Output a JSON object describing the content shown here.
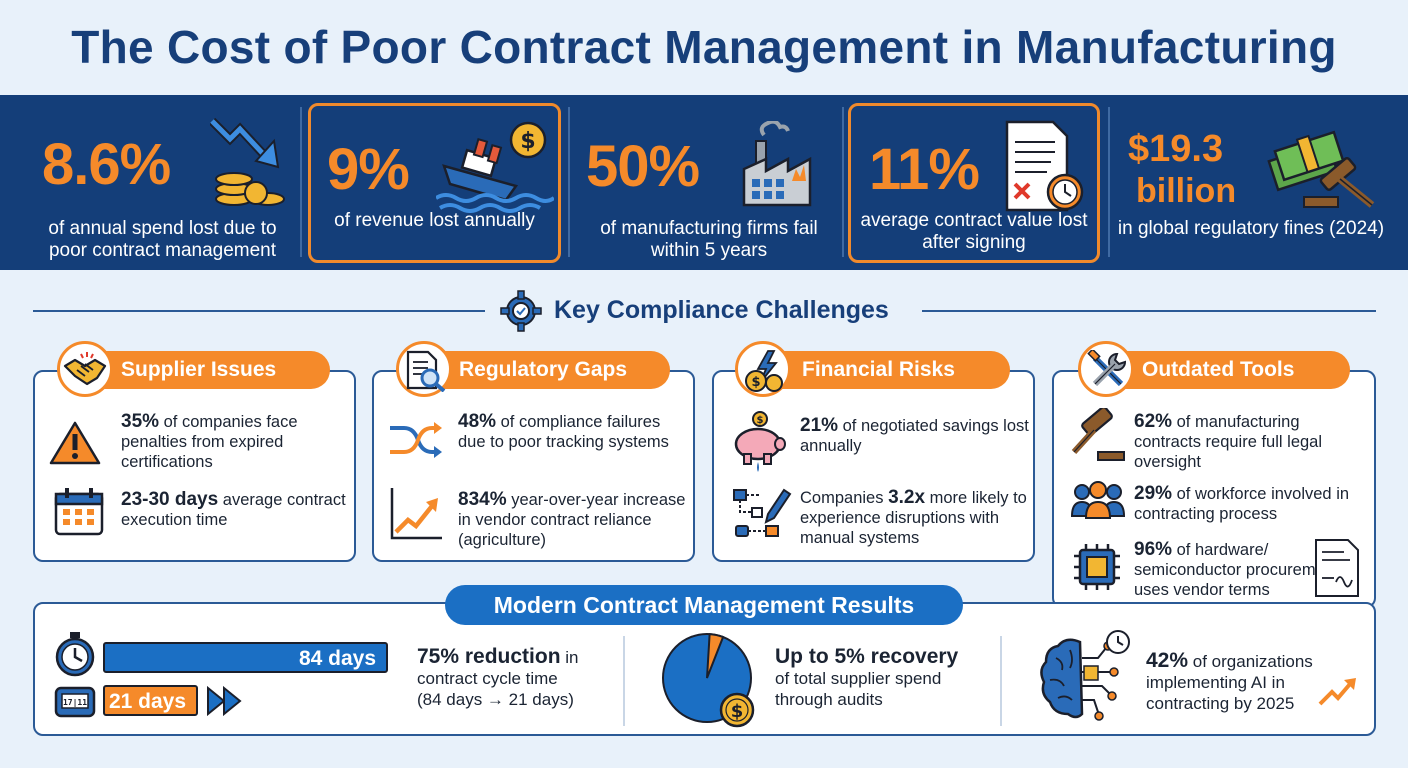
{
  "title": "The Cost of Poor Contract Management in Manufacturing",
  "stats": [
    {
      "value": "8.6%",
      "caption": "of annual spend lost due to poor contract management",
      "icon": "falling-coins-icon"
    },
    {
      "value": "9%",
      "caption": "of revenue lost annually",
      "icon": "sinking-ship-icon"
    },
    {
      "value": "50%",
      "caption": "of manufacturing firms fail within 5 years",
      "icon": "factory-icon"
    },
    {
      "value": "11%",
      "caption": "average contract value lost after signing",
      "icon": "contract-clock-icon"
    },
    {
      "value_line1": "$19.3",
      "value_line2": "billion",
      "caption": "in global regulatory fines (2024)",
      "icon": "money-gavel-icon"
    }
  ],
  "section_title": "Key Compliance Challenges",
  "challenges": [
    {
      "title": "Supplier Issues",
      "icon": "handshake-icon",
      "items": [
        {
          "bold": "35%",
          "text": "of companies face penalties from expired certifications",
          "icon": "warning-icon"
        },
        {
          "bold": "23-30 days",
          "text": "average contract execution time",
          "icon": "calendar-icon"
        }
      ]
    },
    {
      "title": "Regulatory Gaps",
      "icon": "document-search-icon",
      "items": [
        {
          "bold": "48%",
          "text": "of compliance failures due to poor tracking systems",
          "icon": "shuffle-arrows-icon"
        },
        {
          "bold": "834%",
          "text": "year-over-year increase in vendor contract reliance (agriculture)",
          "icon": "trend-up-chart-icon"
        }
      ]
    },
    {
      "title": "Financial Risks",
      "icon": "coins-lightning-icon",
      "items": [
        {
          "bold": "21%",
          "text": "of negotiated savings lost annually",
          "icon": "piggy-bank-icon"
        },
        {
          "pre": "Companies",
          "bold": "3.2x",
          "text": "more likely to experience disruptions with manual systems",
          "icon": "manual-workflow-icon"
        }
      ]
    },
    {
      "title": "Outdated Tools",
      "icon": "tools-icon",
      "items": [
        {
          "bold": "62%",
          "text": "of manufacturing contracts require full legal oversight",
          "icon": "gavel-icon"
        },
        {
          "bold": "29%",
          "text": "of workforce involved in contracting process",
          "icon": "people-icon"
        },
        {
          "bold": "96%",
          "text": "of hardware/ semiconductor procurement uses vendor terms",
          "icon": "chip-icon"
        }
      ]
    }
  ],
  "results": {
    "title": "Modern Contract Management Results",
    "bar_before": "84 days",
    "bar_after": "21 days",
    "cycle": {
      "bold": "75% reduction",
      "text1": "in",
      "text2": "contract cycle time",
      "text3": "(84 days → 21 days)"
    },
    "recovery": {
      "bold": "Up to 5% recovery",
      "text1": "of total supplier spend",
      "text2": "through audits",
      "slice_percent": 5
    },
    "ai": {
      "bold": "42%",
      "text1": "of organizations",
      "text2": "implementing AI in",
      "text3": "contracting by 2025"
    }
  },
  "colors": {
    "navy": "#143e79",
    "orange": "#f58a2a",
    "blue": "#1b6fc4",
    "background": "#e8f1fa"
  }
}
